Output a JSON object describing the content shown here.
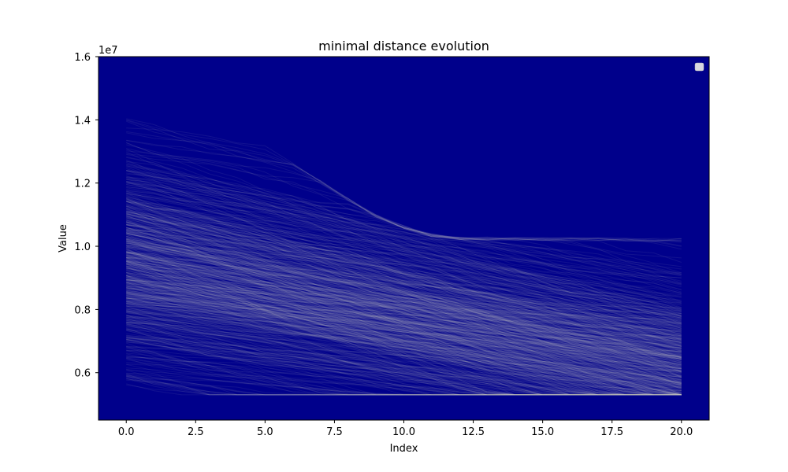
{
  "chart_data": {
    "type": "line",
    "title": "minimal distance evolution",
    "xlabel": "Index",
    "ylabel": "Value",
    "offset_text": "1e7",
    "xlim": [
      -1,
      21
    ],
    "ylim": [
      0.45,
      1.6
    ],
    "y_scale_note": "values in units of 1e7",
    "xticks": [
      0.0,
      2.5,
      5.0,
      7.5,
      10.0,
      12.5,
      15.0,
      17.5,
      20.0
    ],
    "xtick_labels": [
      "0.0",
      "2.5",
      "5.0",
      "7.5",
      "10.0",
      "12.5",
      "15.0",
      "17.5",
      "20.0"
    ],
    "yticks": [
      0.6,
      0.8,
      1.0,
      1.2,
      1.4,
      1.6
    ],
    "ytick_labels": [
      "0.6",
      "0.8",
      "1.0",
      "1.2",
      "1.4",
      "1.6"
    ],
    "grid": false,
    "legend": "top-right (empty)",
    "colors": {
      "background": "#00008b",
      "line": "#c8c8c8",
      "axes_edge": "#000000"
    },
    "series_summary": {
      "index_range": [
        0,
        20
      ],
      "start_range": [
        0.58,
        1.42
      ],
      "end_range": [
        0.53,
        1.025
      ],
      "cap_line": [
        [
          0,
          1.6
        ],
        [
          7.5,
          1.18
        ],
        [
          9.0,
          1.1
        ],
        [
          10.0,
          1.065
        ],
        [
          11.0,
          1.04
        ],
        [
          12.0,
          1.03
        ],
        [
          20.0,
          1.025
        ]
      ],
      "density_center": 0.95
    }
  }
}
